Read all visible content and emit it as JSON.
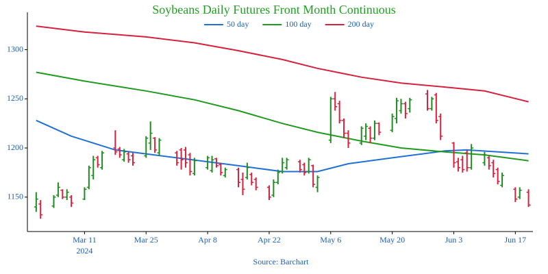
{
  "chart_data": {
    "type": "ohlc",
    "title": "Soybeans Daily Futures Front Month Continuous",
    "source": "Source: Barchart",
    "x_year_label": "2024",
    "up_color": "#1e8c1e",
    "down_color": "#d8203c",
    "xlim": [
      "2024-02-27",
      "2024-06-21"
    ],
    "xticks": [
      {
        "value": "2024-03-11",
        "label": "Mar 11"
      },
      {
        "value": "2024-03-25",
        "label": "Mar 25"
      },
      {
        "value": "2024-04-08",
        "label": "Apr 8"
      },
      {
        "value": "2024-04-22",
        "label": "Apr 22"
      },
      {
        "value": "2024-05-06",
        "label": "May 6"
      },
      {
        "value": "2024-05-20",
        "label": "May 20"
      },
      {
        "value": "2024-06-03",
        "label": "Jun 3"
      },
      {
        "value": "2024-06-17",
        "label": "Jun 17"
      }
    ],
    "ylim": [
      1115,
      1338
    ],
    "yticks": [
      1150,
      1200,
      1250,
      1300
    ],
    "x": [
      "2024-02-29",
      "2024-03-01",
      "2024-03-04",
      "2024-03-05",
      "2024-03-06",
      "2024-03-07",
      "2024-03-08",
      "2024-03-11",
      "2024-03-12",
      "2024-03-13",
      "2024-03-14",
      "2024-03-15",
      "2024-03-18",
      "2024-03-19",
      "2024-03-20",
      "2024-03-21",
      "2024-03-22",
      "2024-03-25",
      "2024-03-26",
      "2024-03-27",
      "2024-03-28",
      "2024-04-01",
      "2024-04-02",
      "2024-04-03",
      "2024-04-04",
      "2024-04-05",
      "2024-04-08",
      "2024-04-09",
      "2024-04-10",
      "2024-04-11",
      "2024-04-12",
      "2024-04-15",
      "2024-04-16",
      "2024-04-17",
      "2024-04-18",
      "2024-04-19",
      "2024-04-22",
      "2024-04-23",
      "2024-04-24",
      "2024-04-25",
      "2024-04-26",
      "2024-04-29",
      "2024-04-30",
      "2024-05-01",
      "2024-05-02",
      "2024-05-03",
      "2024-05-06",
      "2024-05-07",
      "2024-05-08",
      "2024-05-09",
      "2024-05-10",
      "2024-05-13",
      "2024-05-14",
      "2024-05-15",
      "2024-05-16",
      "2024-05-17",
      "2024-05-20",
      "2024-05-21",
      "2024-05-22",
      "2024-05-23",
      "2024-05-24",
      "2024-05-28",
      "2024-05-29",
      "2024-05-30",
      "2024-05-31",
      "2024-06-03",
      "2024-06-04",
      "2024-06-05",
      "2024-06-06",
      "2024-06-07",
      "2024-06-10",
      "2024-06-11",
      "2024-06-12",
      "2024-06-13",
      "2024-06-14",
      "2024-06-17",
      "2024-06-18",
      "2024-06-20"
    ],
    "ohlc": [
      [
        1140,
        1155,
        1135,
        1148
      ],
      [
        1143,
        1147,
        1128,
        1132
      ],
      [
        1141,
        1152,
        1139,
        1150
      ],
      [
        1152,
        1165,
        1150,
        1160
      ],
      [
        1157,
        1158,
        1148,
        1150
      ],
      [
        1150,
        1158,
        1147,
        1155
      ],
      [
        1150,
        1152,
        1140,
        1144
      ],
      [
        1148,
        1160,
        1147,
        1158
      ],
      [
        1160,
        1182,
        1158,
        1180
      ],
      [
        1172,
        1192,
        1168,
        1188
      ],
      [
        1190,
        1192,
        1180,
        1183
      ],
      [
        1180,
        1197,
        1178,
        1195
      ],
      [
        1200,
        1218,
        1193,
        1196
      ],
      [
        1199,
        1201,
        1190,
        1193
      ],
      [
        1188,
        1199,
        1186,
        1196
      ],
      [
        1194,
        1196,
        1185,
        1188
      ],
      [
        1192,
        1195,
        1182,
        1185
      ],
      [
        1192,
        1212,
        1190,
        1210
      ],
      [
        1205,
        1227,
        1198,
        1215
      ],
      [
        1210,
        1211,
        1195,
        1198
      ],
      [
        1195,
        1210,
        1192,
        1208
      ],
      [
        1195,
        1197,
        1182,
        1185
      ],
      [
        1198,
        1200,
        1178,
        1188
      ],
      [
        1198,
        1201,
        1180,
        1185
      ],
      [
        1193,
        1195,
        1172,
        1176
      ],
      [
        1174,
        1190,
        1172,
        1187
      ],
      [
        1180,
        1192,
        1178,
        1190
      ],
      [
        1177,
        1192,
        1175,
        1188
      ],
      [
        1189,
        1190,
        1180,
        1182
      ],
      [
        1183,
        1185,
        1172,
        1175
      ],
      [
        1172,
        1180,
        1170,
        1178
      ],
      [
        1178,
        1180,
        1160,
        1165
      ],
      [
        1168,
        1175,
        1152,
        1158
      ],
      [
        1170,
        1185,
        1168,
        1180
      ],
      [
        1173,
        1175,
        1162,
        1165
      ],
      [
        1168,
        1170,
        1157,
        1160
      ],
      [
        1160,
        1162,
        1147,
        1150
      ],
      [
        1152,
        1168,
        1150,
        1165
      ],
      [
        1165,
        1178,
        1163,
        1175
      ],
      [
        1176,
        1190,
        1174,
        1185
      ],
      [
        1180,
        1190,
        1178,
        1188
      ],
      [
        1186,
        1188,
        1175,
        1178
      ],
      [
        1183,
        1185,
        1172,
        1175
      ],
      [
        1176,
        1190,
        1174,
        1188
      ],
      [
        1182,
        1183,
        1160,
        1163
      ],
      [
        1160,
        1172,
        1155,
        1170
      ],
      [
        1208,
        1252,
        1205,
        1250
      ],
      [
        1250,
        1257,
        1238,
        1242
      ],
      [
        1245,
        1248,
        1225,
        1228
      ],
      [
        1228,
        1230,
        1210,
        1215
      ],
      [
        1215,
        1218,
        1200,
        1205
      ],
      [
        1205,
        1222,
        1203,
        1220
      ],
      [
        1212,
        1225,
        1208,
        1222
      ],
      [
        1220,
        1222,
        1205,
        1210
      ],
      [
        1210,
        1228,
        1208,
        1225
      ],
      [
        1225,
        1226,
        1213,
        1216
      ],
      [
        1218,
        1235,
        1216,
        1232
      ],
      [
        1230,
        1251,
        1225,
        1248
      ],
      [
        1238,
        1250,
        1235,
        1245
      ],
      [
        1245,
        1247,
        1230,
        1235
      ],
      [
        1240,
        1251,
        1236,
        1249
      ],
      [
        1255,
        1259,
        1238,
        1240
      ],
      [
        1240,
        1252,
        1238,
        1250
      ],
      [
        1254,
        1256,
        1225,
        1228
      ],
      [
        1232,
        1235,
        1208,
        1212
      ],
      [
        1205,
        1206,
        1180,
        1185
      ],
      [
        1186,
        1190,
        1176,
        1180
      ],
      [
        1188,
        1192,
        1175,
        1178
      ],
      [
        1195,
        1198,
        1176,
        1180
      ],
      [
        1180,
        1204,
        1178,
        1200
      ],
      [
        1185,
        1196,
        1182,
        1193
      ],
      [
        1190,
        1192,
        1178,
        1182
      ],
      [
        1185,
        1188,
        1170,
        1174
      ],
      [
        1178,
        1180,
        1163,
        1166
      ],
      [
        1162,
        1175,
        1160,
        1172
      ],
      [
        1158,
        1160,
        1145,
        1148
      ],
      [
        1150,
        1160,
        1148,
        1157
      ],
      [
        1155,
        1158,
        1140,
        1142
      ]
    ],
    "series": [
      {
        "name": "50 day",
        "color": "#1f6fd6",
        "x": [
          "2024-02-29",
          "2024-03-08",
          "2024-03-18",
          "2024-04-01",
          "2024-04-15",
          "2024-04-25",
          "2024-05-03",
          "2024-05-10",
          "2024-05-20",
          "2024-06-01",
          "2024-06-06",
          "2024-06-20"
        ],
        "values": [
          1228,
          1212,
          1198,
          1190,
          1182,
          1176,
          1176,
          1184,
          1190,
          1197,
          1198,
          1194
        ]
      },
      {
        "name": "100 day",
        "color": "#1f9a1f",
        "x": [
          "2024-02-29",
          "2024-03-11",
          "2024-03-25",
          "2024-04-05",
          "2024-04-15",
          "2024-04-25",
          "2024-05-03",
          "2024-05-13",
          "2024-05-22",
          "2024-06-01",
          "2024-06-10",
          "2024-06-20"
        ],
        "values": [
          1277,
          1268,
          1258,
          1249,
          1238,
          1225,
          1216,
          1207,
          1200,
          1196,
          1193,
          1187
        ]
      },
      {
        "name": "200 day",
        "color": "#d6203c",
        "x": [
          "2024-02-29",
          "2024-03-11",
          "2024-03-25",
          "2024-04-05",
          "2024-04-15",
          "2024-04-25",
          "2024-05-03",
          "2024-05-13",
          "2024-05-22",
          "2024-06-01",
          "2024-06-10",
          "2024-06-20"
        ],
        "values": [
          1324,
          1318,
          1313,
          1307,
          1299,
          1290,
          1281,
          1272,
          1266,
          1262,
          1258,
          1247
        ]
      }
    ]
  }
}
